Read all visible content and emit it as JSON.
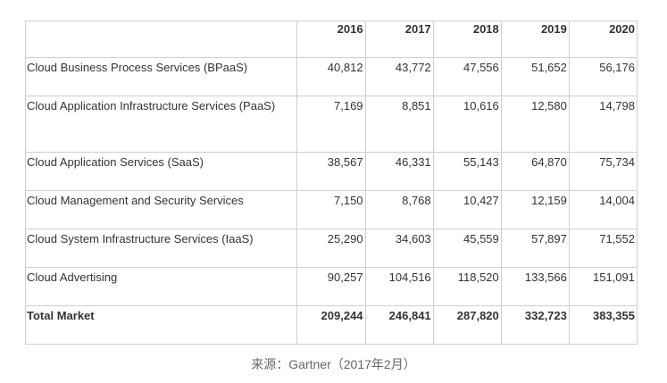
{
  "table": {
    "years": [
      "2016",
      "2017",
      "2018",
      "2019",
      "2020"
    ],
    "rows": [
      {
        "label": "Cloud Business Process Services (BPaaS)",
        "values": [
          "40,812",
          "43,772",
          "47,556",
          "51,652",
          "56,176"
        ]
      },
      {
        "label": "Cloud Application Infrastructure Services (PaaS)",
        "values": [
          "7,169",
          "8,851",
          "10,616",
          "12,580",
          "14,798"
        ]
      },
      {
        "label": "Cloud Application Services (SaaS)",
        "values": [
          "38,567",
          "46,331",
          "55,143",
          "64,870",
          "75,734"
        ]
      },
      {
        "label": "Cloud Management and Security Services",
        "values": [
          "7,150",
          "8,768",
          "10,427",
          "12,159",
          "14,004"
        ]
      },
      {
        "label": "Cloud System Infrastructure Services (IaaS)",
        "values": [
          "25,290",
          "34,603",
          "45,559",
          "57,897",
          "71,552"
        ]
      },
      {
        "label": "Cloud Advertising",
        "values": [
          "90,257",
          "104,516",
          "118,520",
          "133,566",
          "151,091"
        ]
      }
    ],
    "total": {
      "label": "Total Market",
      "values": [
        "209,244",
        "246,841",
        "287,820",
        "332,723",
        "383,355"
      ]
    }
  },
  "source": "来源：Gartner（2017年2月）"
}
